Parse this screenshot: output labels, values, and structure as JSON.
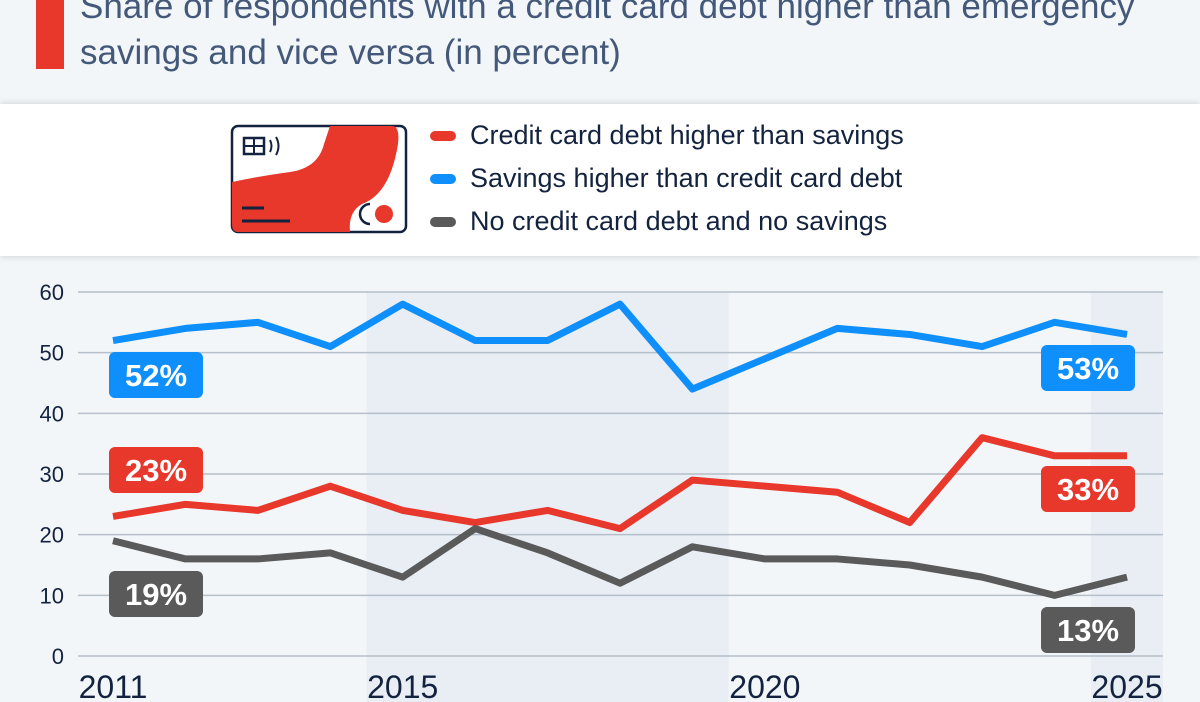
{
  "title": "Share of respondents with a credit card debt higher than emergency savings and vice versa (in percent)",
  "chart_data": {
    "type": "line",
    "title": "Share of respondents with a credit card debt higher than emergency savings and vice versa (in percent)",
    "x": [
      2011,
      2012,
      2013,
      2014,
      2015,
      2016,
      2017,
      2018,
      2019,
      2020,
      2021,
      2022,
      2023,
      2024,
      2025
    ],
    "x_tick_labels": [
      "2011",
      "2015",
      "2020",
      "2025"
    ],
    "y_ticks": [
      "0",
      "10",
      "20",
      "30",
      "40",
      "50",
      "60"
    ],
    "ylim": [
      0,
      60
    ],
    "grid": true,
    "legend_placement": "top",
    "series": [
      {
        "name": "Credit card debt higher than savings",
        "color": "#e8372b",
        "values": [
          23,
          25,
          24,
          28,
          24,
          22,
          24,
          21,
          29,
          28,
          27,
          22,
          36,
          33,
          33
        ],
        "start_label": "23%",
        "end_label": "33%"
      },
      {
        "name": "Savings higher than credit card debt",
        "color": "#0f8ffb",
        "values": [
          52,
          54,
          55,
          51,
          58,
          52,
          52,
          58,
          44,
          49,
          54,
          53,
          51,
          55,
          53
        ],
        "start_label": "52%",
        "end_label": "53%"
      },
      {
        "name": "No credit card debt and no savings",
        "color": "#5a5a5a",
        "values": [
          19,
          16,
          16,
          17,
          13,
          21,
          17,
          12,
          18,
          16,
          16,
          15,
          13,
          10,
          13
        ],
        "start_label": "19%",
        "end_label": "13%"
      }
    ]
  },
  "icons": {
    "legend": "credit-card-icon"
  }
}
